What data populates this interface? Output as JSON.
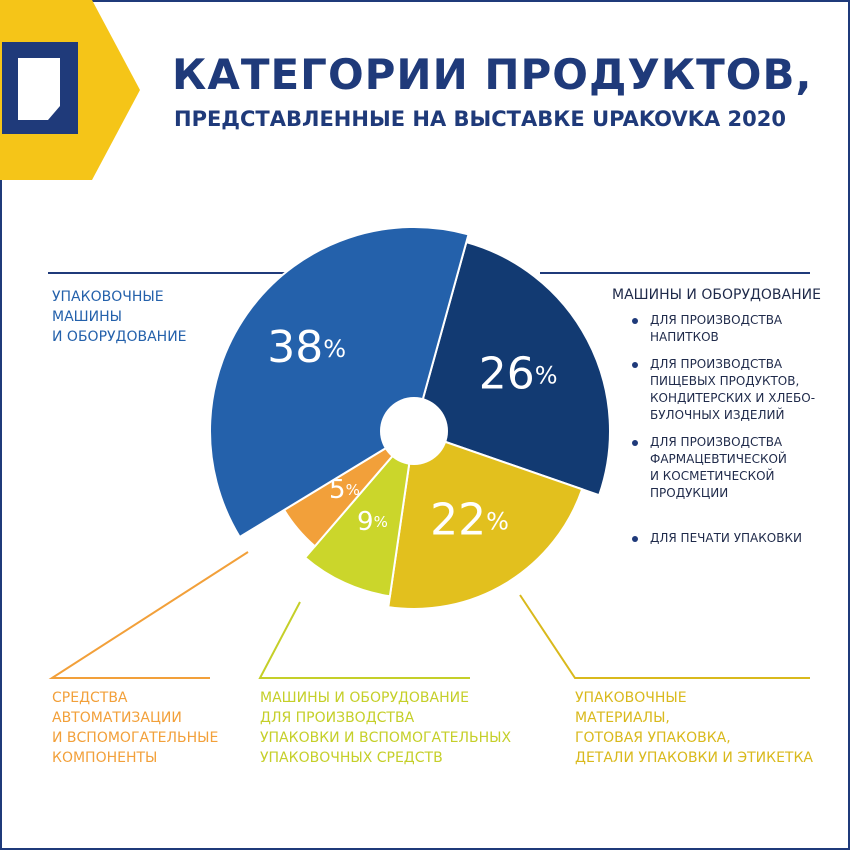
{
  "header": {
    "title": "КАТЕГОРИИ ПРОДУКТОВ,",
    "subtitle": "ПРЕДСТАВЛЕННЫЕ НА ВЫСТАВКЕ UPAKOVKA 2020"
  },
  "colors": {
    "brand_blue": "#1f3a7a",
    "logo_yellow": "#f5c518"
  },
  "chart_data": {
    "type": "pie",
    "donut_hole": true,
    "slices": [
      {
        "value": 26,
        "label": "26%",
        "category": "МАШИНЫ И ОБОРУДОВАНИЕ",
        "color": "#123a72"
      },
      {
        "value": 22,
        "label": "22%",
        "category": "УПАКОВОЧНЫЕ\nМАТЕРИАЛЫ,\nГОТОВАЯ УПАКОВКА,\nДЕТАЛИ УПАКОВКИ И ЭТИКЕТКА",
        "color": "#e2c01e"
      },
      {
        "value": 9,
        "label": "9%",
        "category": "МАШИНЫ И ОБОРУДОВАНИЕ\nДЛЯ ПРОИЗВОДСТВА\nУПАКОВКИ И ВСПОМОГАТЕЛЬНЫХ\nУПАКОВОЧНЫХ СРЕДСТВ",
        "color": "#cbd62b"
      },
      {
        "value": 5,
        "label": "5%",
        "category": "СРЕДСТВА\nАВТОМАТИЗАЦИИ\nИ ВСПОМОГАТЕЛЬНЫЕ\nКОМПОНЕНТЫ",
        "color": "#f2a03a"
      },
      {
        "value": 38,
        "label": "38%",
        "category": "УПАКОВОЧНЫЕ\nМАШИНЫ\nИ ОБОРУДОВАНИЕ",
        "color": "#2461ab"
      }
    ],
    "category_colors": {
      "orange": "#f2a03a",
      "lime": "#c5cf29",
      "yellow": "#d9b91c",
      "blue": "#2461ab"
    },
    "machinery_breakdown": [
      "ДЛЯ ПРОИЗВОДСТВА\nНАПИТКОВ",
      "ДЛЯ ПРОИЗВОДСТВА\nПИЩЕВЫХ ПРОДУКТОВ,\nКОНДИТЕРСКИХ И ХЛЕБО-\nБУЛОЧНЫХ ИЗДЕЛИЙ",
      "ДЛЯ ПРОИЗВОДСТВА\nФАРМАЦЕВТИЧЕСКОЙ\nИ КОСМЕТИЧЕСКОЙ\nПРОДУКЦИИ",
      "ДЛЯ ПЕЧАТИ УПАКОВКИ"
    ]
  }
}
